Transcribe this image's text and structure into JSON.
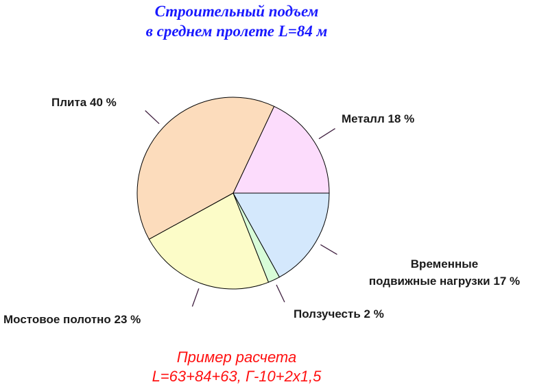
{
  "chart_data": {
    "type": "pie",
    "title": [
      "Строительный подъем",
      "в среднем пролете L=84 м"
    ],
    "categories": [
      "Металл",
      "Плита",
      "Мостовое полотно",
      "Ползучесть",
      "Временные\nподвижные нагрузки"
    ],
    "values": [
      18,
      40,
      23,
      2,
      17
    ],
    "value_labels": [
      "18 %",
      "40 %",
      "23 %",
      "2 %",
      "17 %"
    ],
    "colors": [
      "#fcdcfc",
      "#fcdcbc",
      "#fcfcc8",
      "#d8fcd8",
      "#d4e8fc"
    ],
    "annotations": [
      "Пример расчета",
      "L=63+84+63, Г-10+2х1,5"
    ]
  }
}
